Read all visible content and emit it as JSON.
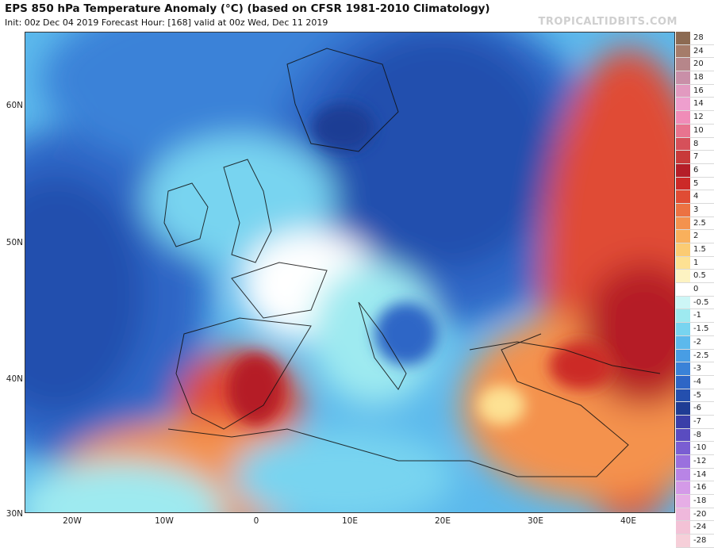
{
  "title": "EPS 850 hPa Temperature Anomaly (°C) (based on CFSR 1981-2010 Climatology)",
  "subtitle": "Init: 00z Dec 04 2019   Forecast Hour: [168]   valid at 00z Wed, Dec 11 2019",
  "brand": "TROPICALTIDBITS.COM",
  "lat_labels": [
    "60N",
    "50N",
    "40N",
    "30N"
  ],
  "lon_labels": [
    "20W",
    "10W",
    "0",
    "10E",
    "20E",
    "30E",
    "40E"
  ],
  "colorbar": [
    {
      "label": "28",
      "color": "#8c6a52"
    },
    {
      "label": "24",
      "color": "#a57c6a"
    },
    {
      "label": "20",
      "color": "#b6868a"
    },
    {
      "label": "18",
      "color": "#c98fa8"
    },
    {
      "label": "16",
      "color": "#e29ac0"
    },
    {
      "label": "14",
      "color": "#ee9fce"
    },
    {
      "label": "12",
      "color": "#f08cb8"
    },
    {
      "label": "10",
      "color": "#e8748f"
    },
    {
      "label": "8",
      "color": "#d6505a"
    },
    {
      "label": "7",
      "color": "#c83a3a"
    },
    {
      "label": "6",
      "color": "#b51e28"
    },
    {
      "label": "5",
      "color": "#cc2a28"
    },
    {
      "label": "4",
      "color": "#e04c34"
    },
    {
      "label": "3",
      "color": "#ec7242"
    },
    {
      "label": "2.5",
      "color": "#f4924e"
    },
    {
      "label": "2",
      "color": "#f9b05c"
    },
    {
      "label": "1.5",
      "color": "#fbcb73"
    },
    {
      "label": "1",
      "color": "#fde193"
    },
    {
      "label": "0.5",
      "color": "#fdf3c2"
    },
    {
      "label": "0",
      "color": "#ffffff"
    },
    {
      "label": "-0.5",
      "color": "#cdf6f6"
    },
    {
      "label": "-1",
      "color": "#9eeaf0"
    },
    {
      "label": "-1.5",
      "color": "#78d4f0"
    },
    {
      "label": "-2",
      "color": "#5cb9ec"
    },
    {
      "label": "-2.5",
      "color": "#489de4"
    },
    {
      "label": "-3",
      "color": "#3a82d8"
    },
    {
      "label": "-4",
      "color": "#2e66c6"
    },
    {
      "label": "-5",
      "color": "#244fae"
    },
    {
      "label": "-6",
      "color": "#1f3c94"
    },
    {
      "label": "-7",
      "color": "#3a3ea8"
    },
    {
      "label": "-8",
      "color": "#5a4cc0"
    },
    {
      "label": "-10",
      "color": "#7a5ed2"
    },
    {
      "label": "-12",
      "color": "#9a70de"
    },
    {
      "label": "-14",
      "color": "#b884e6"
    },
    {
      "label": "-16",
      "color": "#d49ae8"
    },
    {
      "label": "-18",
      "color": "#e6aee6"
    },
    {
      "label": "-20",
      "color": "#efb8dc"
    },
    {
      "label": "-24",
      "color": "#f3c2d6"
    },
    {
      "label": "-28",
      "color": "#f6cfd9"
    }
  ]
}
